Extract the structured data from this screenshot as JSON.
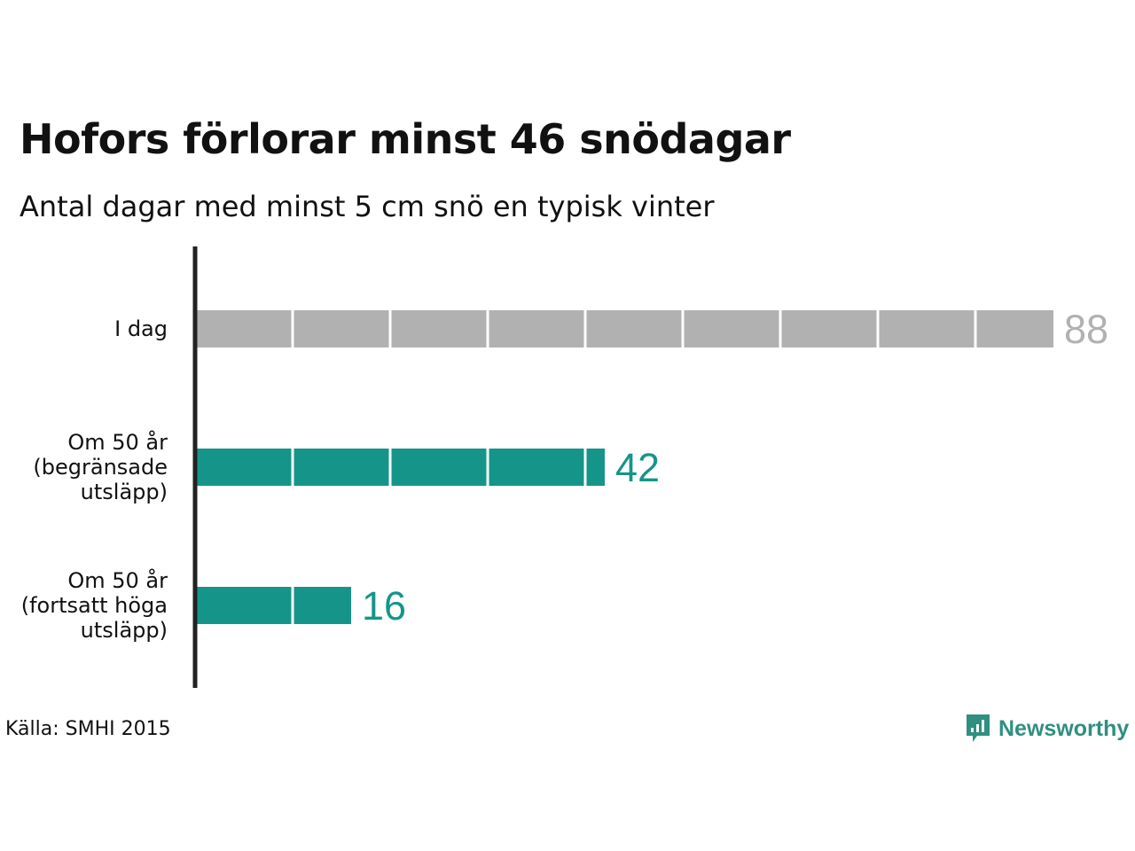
{
  "title": "Hofors förlorar minst 46 snödagar",
  "subtitle": "Antal dagar med minst 5 cm snö en typisk vinter",
  "source": "Källa: SMHI 2015",
  "brand": {
    "name": "Newsworthy",
    "icon": "newsworthy-logo-icon"
  },
  "colors": {
    "grey": "#b1b1b1",
    "teal": "#15958a",
    "axis": "#222222"
  },
  "chart_data": {
    "type": "bar",
    "orientation": "horizontal",
    "title": "Hofors förlorar minst 46 snödagar",
    "subtitle": "Antal dagar med minst 5 cm snö en typisk vinter",
    "categories": [
      [
        "I dag"
      ],
      [
        "Om 50 år",
        "(begränsade",
        "utsläpp)"
      ],
      [
        "Om 50 år",
        "(fortsatt höga",
        "utsläpp)"
      ]
    ],
    "values": [
      88,
      42,
      16
    ],
    "value_labels": [
      "88",
      "42",
      "16"
    ],
    "bar_colors": [
      "#b1b1b1",
      "#15958a",
      "#15958a"
    ],
    "segment_step": 10,
    "xlim": [
      0,
      88
    ],
    "grid": false
  }
}
